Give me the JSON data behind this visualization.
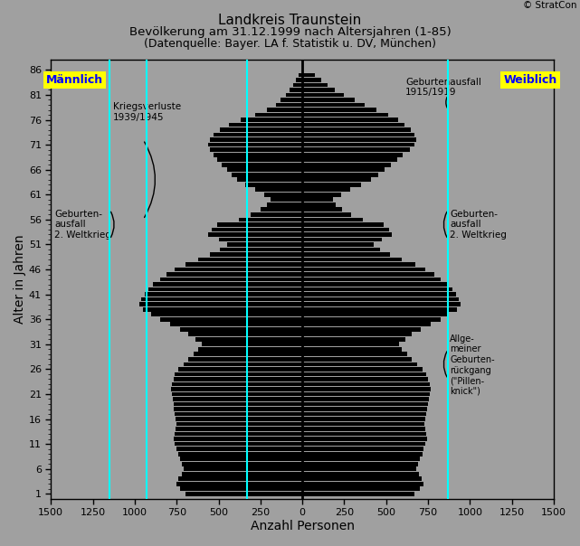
{
  "title_line1": "Landkreis Traunstein",
  "title_line2": "Bevölkerung am 31.12.1999 nach Altersjahren (1-85)",
  "title_line3": "(Datenquelle: Bayer. LA f. Statistik u. DV, München)",
  "xlabel": "Anzahl Personen",
  "ylabel": "Alter in Jahren",
  "copyright": "© StratCon",
  "bg_color": "#a0a0a0",
  "bar_color": "#000000",
  "bar_height": 0.85,
  "xlim": 1500,
  "yticks": [
    1,
    6,
    11,
    16,
    21,
    26,
    31,
    36,
    41,
    46,
    51,
    56,
    61,
    66,
    71,
    76,
    81,
    86
  ],
  "male_label": "Männlich",
  "female_label": "Weiblich",
  "male_label_color": "#0000ff",
  "female_label_color": "#0000ff",
  "label_bg_color": "#ffff00",
  "male_data": [
    700,
    730,
    750,
    740,
    720,
    710,
    720,
    730,
    740,
    750,
    760,
    770,
    760,
    755,
    750,
    755,
    760,
    765,
    770,
    775,
    780,
    785,
    780,
    770,
    760,
    740,
    710,
    680,
    650,
    620,
    600,
    640,
    680,
    730,
    790,
    850,
    900,
    950,
    970,
    960,
    940,
    920,
    890,
    850,
    810,
    760,
    700,
    620,
    550,
    490,
    450,
    500,
    560,
    540,
    510,
    380,
    310,
    250,
    210,
    190,
    230,
    280,
    340,
    390,
    420,
    450,
    480,
    510,
    530,
    550,
    560,
    550,
    530,
    490,
    440,
    370,
    280,
    210,
    160,
    130,
    100,
    75,
    55,
    40,
    25
  ],
  "female_data": [
    670,
    700,
    720,
    710,
    695,
    680,
    690,
    700,
    715,
    725,
    735,
    745,
    740,
    735,
    730,
    735,
    740,
    745,
    750,
    755,
    760,
    765,
    760,
    750,
    740,
    715,
    685,
    655,
    625,
    595,
    575,
    615,
    655,
    705,
    765,
    825,
    875,
    925,
    945,
    935,
    915,
    895,
    865,
    825,
    785,
    735,
    675,
    595,
    525,
    465,
    425,
    475,
    535,
    515,
    485,
    360,
    290,
    235,
    200,
    185,
    230,
    285,
    350,
    410,
    450,
    490,
    530,
    565,
    600,
    640,
    670,
    680,
    670,
    645,
    610,
    570,
    510,
    440,
    370,
    310,
    250,
    195,
    150,
    110,
    75
  ]
}
